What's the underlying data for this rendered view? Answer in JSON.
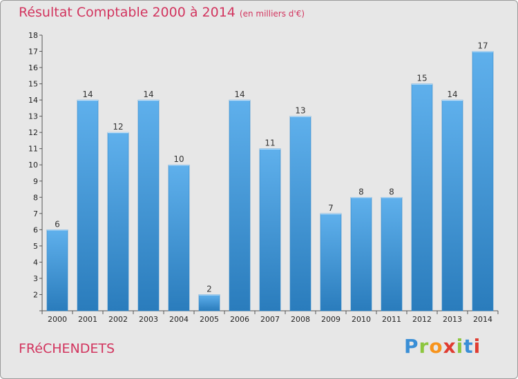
{
  "header": {
    "title": "Résultat Comptable 2000 à 2014",
    "subtitle": "(en milliers d'€)"
  },
  "commune": "FRéCHENDETS",
  "brand": {
    "letters": [
      "P",
      "r",
      "o",
      "x",
      "i",
      "t",
      "i"
    ],
    "colors": [
      "#3a8fd6",
      "#8dc63f",
      "#f7941d",
      "#e03c31",
      "#8dc63f",
      "#3a8fd6",
      "#e03c31"
    ]
  },
  "colors": {
    "bar": "#3c96db",
    "bar_light": "#5fb0ec",
    "bar_dark": "#2a7cbc",
    "title": "#d2345e"
  },
  "chart_data": {
    "type": "bar",
    "title": "Résultat Comptable 2000 à 2014",
    "ylabel": "(en milliers d'€)",
    "categories": [
      "2000",
      "2001",
      "2002",
      "2003",
      "2004",
      "2005",
      "2006",
      "2007",
      "2008",
      "2009",
      "2010",
      "2011",
      "2012",
      "2013",
      "2014"
    ],
    "values": [
      6,
      14,
      12,
      14,
      10,
      2,
      14,
      11,
      13,
      7,
      8,
      8,
      15,
      14,
      17
    ],
    "ylim": [
      1,
      18
    ],
    "yticks": [
      1,
      2,
      3,
      4,
      5,
      6,
      7,
      8,
      9,
      10,
      11,
      12,
      13,
      14,
      15,
      16,
      17,
      18
    ],
    "ytick_labels": [
      "",
      "2",
      "3",
      "4",
      "5",
      "6",
      "7",
      "8",
      "9",
      "10",
      "11",
      "12",
      "13",
      "14",
      "15",
      "16",
      "17",
      "18"
    ],
    "grid": false,
    "legend": "none"
  }
}
